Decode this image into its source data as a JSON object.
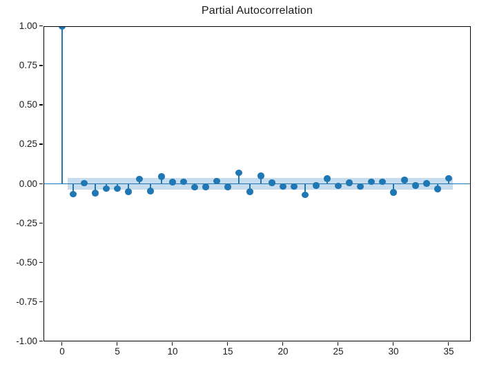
{
  "chart_data": {
    "type": "stem",
    "title": "Partial Autocorrelation",
    "xlabel": "",
    "ylabel": "",
    "x": [
      0,
      1,
      2,
      3,
      4,
      5,
      6,
      7,
      8,
      9,
      10,
      11,
      12,
      13,
      14,
      15,
      16,
      17,
      18,
      19,
      20,
      21,
      22,
      23,
      24,
      25,
      26,
      27,
      28,
      29,
      30,
      31,
      32,
      33,
      34,
      35
    ],
    "values": [
      1.0,
      -0.065,
      0.005,
      -0.06,
      -0.03,
      -0.03,
      -0.05,
      0.03,
      -0.045,
      0.045,
      0.012,
      0.014,
      -0.022,
      -0.02,
      0.018,
      -0.02,
      0.07,
      -0.05,
      0.05,
      0.007,
      -0.018,
      -0.018,
      -0.07,
      -0.012,
      0.033,
      -0.013,
      0.006,
      -0.017,
      0.014,
      0.014,
      -0.055,
      0.025,
      -0.012,
      0.003,
      -0.032,
      0.034
    ],
    "band": {
      "x_start": 0.5,
      "x_end": 35.4,
      "half_height": 0.037
    },
    "ylim": [
      -1.0,
      1.0
    ],
    "xlim": [
      -1.69,
      37.0
    ],
    "ytick_values": [
      1.0,
      0.75,
      0.5,
      0.25,
      0.0,
      -0.25,
      -0.5,
      -0.75,
      -1.0
    ],
    "ytick_labels": [
      "1.00",
      "0.75",
      "0.50",
      "0.25",
      "0.00",
      "-0.25",
      "-0.50",
      "-0.75",
      "-1.00"
    ],
    "xtick_values": [
      0,
      5,
      10,
      15,
      20,
      25,
      30,
      35
    ],
    "xtick_labels": [
      "0",
      "5",
      "10",
      "15",
      "20",
      "25",
      "30",
      "35"
    ],
    "grid": false,
    "legend": null,
    "colors": {
      "stem": "#1f77b4",
      "band": "#c7dcec",
      "spine": "#000000",
      "text": "#1a1a1a",
      "background": "#ffffff"
    }
  }
}
